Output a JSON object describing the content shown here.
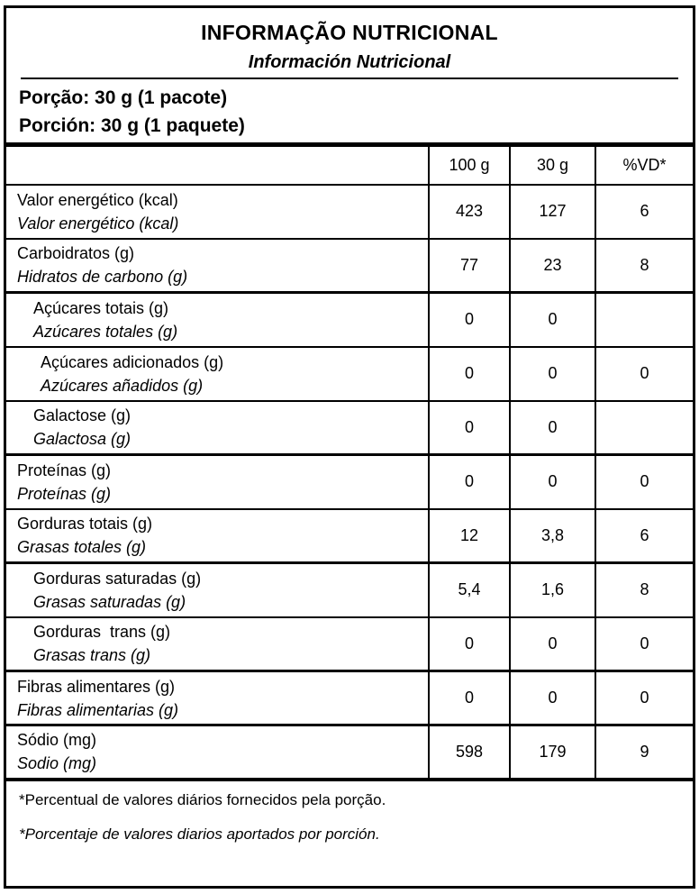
{
  "colors": {
    "text": "#000000",
    "background": "#ffffff",
    "border": "#000000"
  },
  "header": {
    "title": "INFORMAÇÃO NUTRICIONAL",
    "subtitle": "Información Nutricional"
  },
  "serving": {
    "pt": "Porção: 30 g (1 pacote)",
    "es": "Porción: 30 g (1 paquete)"
  },
  "table": {
    "columns": [
      "100 g",
      "30 g",
      "%VD*"
    ],
    "rows": [
      {
        "pt": "Valor energético (kcal)",
        "es": "Valor energético (kcal)",
        "indent": 0,
        "values": [
          "423",
          "127",
          "6"
        ]
      },
      {
        "pt": "Carboidratos (g)",
        "es": "Hidratos de carbono (g)",
        "indent": 0,
        "values": [
          "77",
          "23",
          "8"
        ]
      },
      {
        "pt": "Açúcares totais (g)",
        "es": "Azúcares totales (g)",
        "indent": 1,
        "values": [
          "0",
          "0",
          ""
        ]
      },
      {
        "pt": "Açúcares adicionados (g)",
        "es": "Azúcares añadidos (g)",
        "indent": 2,
        "values": [
          "0",
          "0",
          "0"
        ]
      },
      {
        "pt": "Galactose (g)",
        "es": "Galactosa (g)",
        "indent": 1,
        "values": [
          "0",
          "0",
          ""
        ]
      },
      {
        "pt": "Proteínas (g)",
        "es": "Proteínas (g)",
        "indent": 0,
        "values": [
          "0",
          "0",
          "0"
        ]
      },
      {
        "pt": "Gorduras totais (g)",
        "es": "Grasas totales (g)",
        "indent": 0,
        "values": [
          "12",
          "3,8",
          "6"
        ]
      },
      {
        "pt": "Gorduras saturadas (g)",
        "es": "Grasas saturadas (g)",
        "indent": 1,
        "values": [
          "5,4",
          "1,6",
          "8"
        ]
      },
      {
        "pt": "Gorduras  trans (g)",
        "es": "Grasas trans (g)",
        "indent": 1,
        "values": [
          "0",
          "0",
          "0"
        ]
      },
      {
        "pt": "Fibras alimentares (g)",
        "es": "Fibras alimentarias (g)",
        "indent": 0,
        "values": [
          "0",
          "0",
          "0"
        ]
      },
      {
        "pt": "Sódio (mg)",
        "es": "Sodio (mg)",
        "indent": 0,
        "values": [
          "598",
          "179",
          "9"
        ]
      }
    ]
  },
  "footnotes": {
    "pt": "*Percentual de valores diários fornecidos pela porção.",
    "es": "*Porcentaje de valores diarios aportados por porción."
  }
}
